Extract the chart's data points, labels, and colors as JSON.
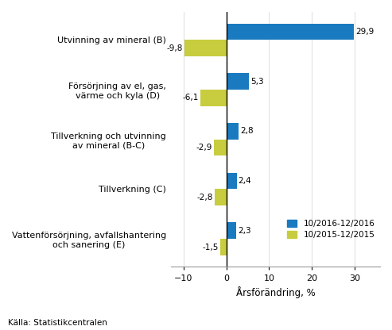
{
  "categories": [
    "Utvinning av mineral (B)",
    "Försörjning av el, gas,\nvärme och kyla (D)",
    "Tillverkning och utvinning\nav mineral (B-C)",
    "Tillverkning (C)",
    "Vattenförsörjning, avfallshantering\noch sanering (E)"
  ],
  "values_2016": [
    29.9,
    5.3,
    2.8,
    2.4,
    2.3
  ],
  "values_2015": [
    -9.8,
    -6.1,
    -2.9,
    -2.8,
    -1.5
  ],
  "labels_2016": [
    "29,9",
    "5,3",
    "2,8",
    "2,4",
    "2,3"
  ],
  "labels_2015": [
    "-9,8",
    "-6,1",
    "-2,9",
    "-2,8",
    "-1,5"
  ],
  "color_2016": "#1a7abf",
  "color_2015": "#c8cc3f",
  "bar_height": 0.33,
  "xlim": [
    -13,
    36
  ],
  "xlabel": "Årsförändring, %",
  "xticks": [
    -10,
    0,
    10,
    20,
    30
  ],
  "legend_labels": [
    "10/2016-12/2016",
    "10/2015-12/2015"
  ],
  "source": "Källa: Statistikcentralen",
  "background_color": "#ffffff"
}
